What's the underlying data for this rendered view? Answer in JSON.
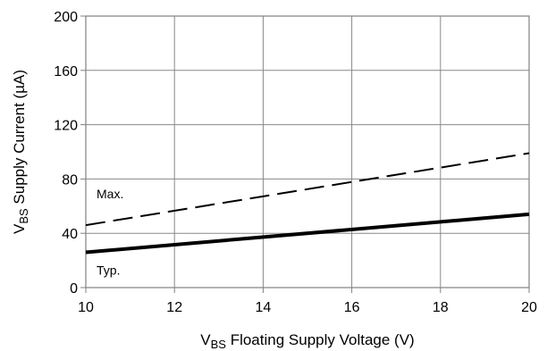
{
  "chart_data": {
    "type": "line",
    "title": "",
    "xlabel": {
      "main": "V",
      "sub": "BS",
      "rest": " Floating Supply Voltage (V)"
    },
    "ylabel": {
      "main": "V",
      "sub": "BS",
      "rest": " Supply Current  (µA)"
    },
    "xlim": [
      10,
      20
    ],
    "ylim": [
      0,
      200
    ],
    "xticks": [
      10,
      12,
      14,
      16,
      18,
      20
    ],
    "yticks": [
      0,
      40,
      80,
      120,
      160,
      200
    ],
    "grid": true,
    "series": [
      {
        "label": "Max.",
        "style": "dashed",
        "x": [
          10,
          20
        ],
        "y": [
          46,
          99
        ]
      },
      {
        "label": "Typ.",
        "style": "solid",
        "x": [
          10,
          20
        ],
        "y": [
          26,
          54
        ]
      }
    ]
  }
}
